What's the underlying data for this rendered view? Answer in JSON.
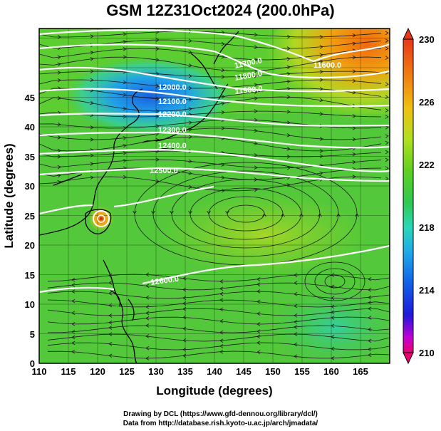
{
  "title": "GSM 12Z31Oct2024 (200.0hPa)",
  "xlabel": "Longitude (degrees)",
  "ylabel": "Latitude  (degrees)",
  "x_ticks": [
    "110",
    "115",
    "120",
    "125",
    "130",
    "135",
    "140",
    "145",
    "150",
    "155",
    "160",
    "165"
  ],
  "y_ticks": [
    "0",
    "5",
    "10",
    "15",
    "20",
    "25",
    "30",
    "35",
    "40",
    "45"
  ],
  "colorbar_ticks": [
    "230",
    "226",
    "222",
    "218",
    "214",
    "210"
  ],
  "colorbar_colors": [
    "#e8006e",
    "#c000d8",
    "#2018d8",
    "#1060e8",
    "#20a8e8",
    "#28d8b8",
    "#30c850",
    "#60d020",
    "#b0e020",
    "#f0c010",
    "#f08010",
    "#e83818"
  ],
  "contour_labels": [
    "11600.0",
    "11700.0",
    "11800.0",
    "11900.0",
    "12000.0",
    "12100.0",
    "12200.0",
    "12300.0",
    "12400.0",
    "12500.0",
    "12600.0"
  ],
  "credits": {
    "line1": "Drawing by DCL (https://www.gfd-dennou.org/library/dcl/)",
    "line2": "Data from http://database.rish.kyoto-u.ac.jp/arch/jmadata/"
  }
}
